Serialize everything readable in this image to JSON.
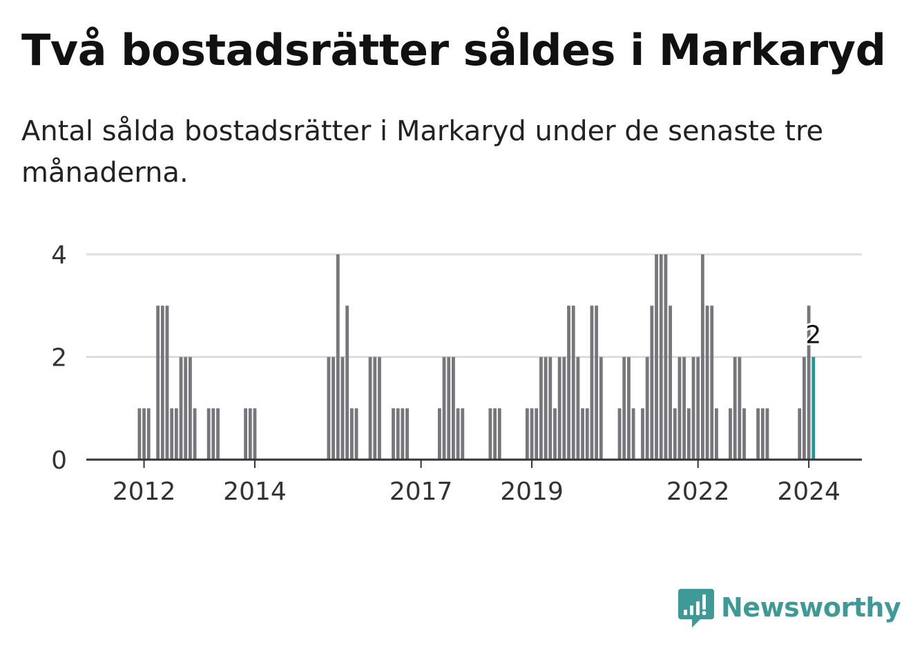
{
  "title": "Två bostadsrätter såldes i Markaryd",
  "subtitle": "Antal sålda bostadsrätter i Markaryd under de senaste tre månaderna.",
  "brand": {
    "name": "Newsworthy",
    "color": "#3e9a96"
  },
  "colors": {
    "bar": "#77767b",
    "highlight": "#1a9a96",
    "grid": "#dddddd",
    "axis": "#333333"
  },
  "chart_data": {
    "type": "bar",
    "x_start": "2011-01",
    "x_end": "2024-12",
    "ylim": [
      0,
      4
    ],
    "yticks": [
      0,
      2,
      4
    ],
    "xticks": [
      {
        "label": "2012",
        "date": "2012-01"
      },
      {
        "label": "2014",
        "date": "2014-01"
      },
      {
        "label": "2017",
        "date": "2017-01"
      },
      {
        "label": "2019",
        "date": "2019-01"
      },
      {
        "label": "2022",
        "date": "2022-01"
      },
      {
        "label": "2024",
        "date": "2024-01"
      }
    ],
    "points": [
      {
        "date": "2011-12",
        "value": 1
      },
      {
        "date": "2012-01",
        "value": 1
      },
      {
        "date": "2012-02",
        "value": 1
      },
      {
        "date": "2012-04",
        "value": 3
      },
      {
        "date": "2012-05",
        "value": 3
      },
      {
        "date": "2012-06",
        "value": 3
      },
      {
        "date": "2012-07",
        "value": 1
      },
      {
        "date": "2012-08",
        "value": 1
      },
      {
        "date": "2012-09",
        "value": 2
      },
      {
        "date": "2012-10",
        "value": 2
      },
      {
        "date": "2012-11",
        "value": 2
      },
      {
        "date": "2012-12",
        "value": 1
      },
      {
        "date": "2013-03",
        "value": 1
      },
      {
        "date": "2013-04",
        "value": 1
      },
      {
        "date": "2013-05",
        "value": 1
      },
      {
        "date": "2013-11",
        "value": 1
      },
      {
        "date": "2013-12",
        "value": 1
      },
      {
        "date": "2014-01",
        "value": 1
      },
      {
        "date": "2015-05",
        "value": 2
      },
      {
        "date": "2015-06",
        "value": 2
      },
      {
        "date": "2015-07",
        "value": 4
      },
      {
        "date": "2015-08",
        "value": 2
      },
      {
        "date": "2015-09",
        "value": 3
      },
      {
        "date": "2015-10",
        "value": 1
      },
      {
        "date": "2015-11",
        "value": 1
      },
      {
        "date": "2016-02",
        "value": 2
      },
      {
        "date": "2016-03",
        "value": 2
      },
      {
        "date": "2016-04",
        "value": 2
      },
      {
        "date": "2016-07",
        "value": 1
      },
      {
        "date": "2016-08",
        "value": 1
      },
      {
        "date": "2016-09",
        "value": 1
      },
      {
        "date": "2016-10",
        "value": 1
      },
      {
        "date": "2017-05",
        "value": 1
      },
      {
        "date": "2017-06",
        "value": 2
      },
      {
        "date": "2017-07",
        "value": 2
      },
      {
        "date": "2017-08",
        "value": 2
      },
      {
        "date": "2017-09",
        "value": 1
      },
      {
        "date": "2017-10",
        "value": 1
      },
      {
        "date": "2018-04",
        "value": 1
      },
      {
        "date": "2018-05",
        "value": 1
      },
      {
        "date": "2018-06",
        "value": 1
      },
      {
        "date": "2018-12",
        "value": 1
      },
      {
        "date": "2019-01",
        "value": 1
      },
      {
        "date": "2019-02",
        "value": 1
      },
      {
        "date": "2019-03",
        "value": 2
      },
      {
        "date": "2019-04",
        "value": 2
      },
      {
        "date": "2019-05",
        "value": 2
      },
      {
        "date": "2019-06",
        "value": 1
      },
      {
        "date": "2019-07",
        "value": 2
      },
      {
        "date": "2019-08",
        "value": 2
      },
      {
        "date": "2019-09",
        "value": 3
      },
      {
        "date": "2019-10",
        "value": 3
      },
      {
        "date": "2019-11",
        "value": 2
      },
      {
        "date": "2019-12",
        "value": 1
      },
      {
        "date": "2020-01",
        "value": 1
      },
      {
        "date": "2020-02",
        "value": 3
      },
      {
        "date": "2020-03",
        "value": 3
      },
      {
        "date": "2020-04",
        "value": 2
      },
      {
        "date": "2020-08",
        "value": 1
      },
      {
        "date": "2020-09",
        "value": 2
      },
      {
        "date": "2020-10",
        "value": 2
      },
      {
        "date": "2020-11",
        "value": 1
      },
      {
        "date": "2021-01",
        "value": 1
      },
      {
        "date": "2021-02",
        "value": 2
      },
      {
        "date": "2021-03",
        "value": 3
      },
      {
        "date": "2021-04",
        "value": 4
      },
      {
        "date": "2021-05",
        "value": 4
      },
      {
        "date": "2021-06",
        "value": 4
      },
      {
        "date": "2021-07",
        "value": 3
      },
      {
        "date": "2021-08",
        "value": 1
      },
      {
        "date": "2021-09",
        "value": 2
      },
      {
        "date": "2021-10",
        "value": 2
      },
      {
        "date": "2021-11",
        "value": 1
      },
      {
        "date": "2021-12",
        "value": 2
      },
      {
        "date": "2022-01",
        "value": 2
      },
      {
        "date": "2022-02",
        "value": 4
      },
      {
        "date": "2022-03",
        "value": 3
      },
      {
        "date": "2022-04",
        "value": 3
      },
      {
        "date": "2022-05",
        "value": 1
      },
      {
        "date": "2022-08",
        "value": 1
      },
      {
        "date": "2022-09",
        "value": 2
      },
      {
        "date": "2022-10",
        "value": 2
      },
      {
        "date": "2022-11",
        "value": 1
      },
      {
        "date": "2023-02",
        "value": 1
      },
      {
        "date": "2023-03",
        "value": 1
      },
      {
        "date": "2023-04",
        "value": 1
      },
      {
        "date": "2023-11",
        "value": 1
      },
      {
        "date": "2023-12",
        "value": 2
      },
      {
        "date": "2024-01",
        "value": 3
      },
      {
        "date": "2024-02",
        "value": 2
      }
    ],
    "highlight": {
      "date": "2024-02",
      "value": 2,
      "label": "2"
    }
  }
}
